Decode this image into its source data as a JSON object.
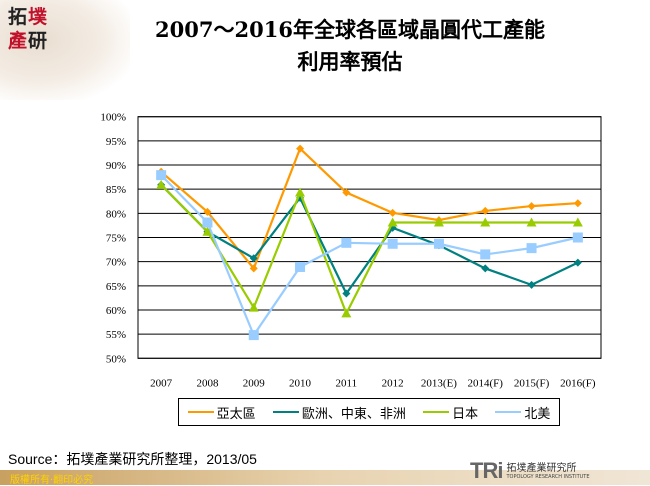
{
  "header": {
    "logo_text": [
      "拓",
      "墣",
      "產",
      "研"
    ],
    "title_line1": "2007～2016年全球各區域晶圓代工產能",
    "title_line2": "利用率預估"
  },
  "chart_data": {
    "type": "line",
    "categories": [
      "2007",
      "2008",
      "2009",
      "2010",
      "2011",
      "2012",
      "2013(E)",
      "2014(F)",
      "2015(F)",
      "2016(F)"
    ],
    "ylim": [
      50,
      100
    ],
    "yticks": [
      "50%",
      "55%",
      "60%",
      "65%",
      "70%",
      "75%",
      "80%",
      "85%",
      "90%",
      "95%",
      "100%"
    ],
    "grid": true,
    "legend_position": "bottom",
    "series": [
      {
        "name": "亞太區",
        "color": "#ff9900",
        "marker": "diamond",
        "values": [
          88.6,
          80.3,
          68.6,
          93.4,
          84.3,
          80.1,
          78.6,
          80.5,
          81.5,
          82.1
        ]
      },
      {
        "name": "歐洲、中東、非洲",
        "color": "#008080",
        "marker": "diamond",
        "values": [
          85.9,
          76.2,
          70.7,
          83.2,
          63.4,
          77.0,
          73.4,
          68.6,
          65.2,
          69.8
        ]
      },
      {
        "name": "日本",
        "color": "#99cc00",
        "marker": "triangle",
        "values": [
          85.9,
          76.2,
          60.5,
          84.3,
          59.3,
          78.1,
          78.1,
          78.1,
          78.1,
          78.1
        ]
      },
      {
        "name": "北美",
        "color": "#99ccff",
        "marker": "square",
        "values": [
          87.9,
          78.1,
          54.8,
          68.9,
          73.9,
          73.7,
          73.7,
          71.5,
          72.8,
          75.0
        ]
      }
    ]
  },
  "footer": {
    "source": "Source：拓墣產業研究所整理，2013/05",
    "copyright": "版權所有‧翻印必究",
    "org_mark": "TRi",
    "org_name": "拓墣產業研究所",
    "org_name_en": "TOPOLOGY RESEARCH INSTITUTE"
  }
}
